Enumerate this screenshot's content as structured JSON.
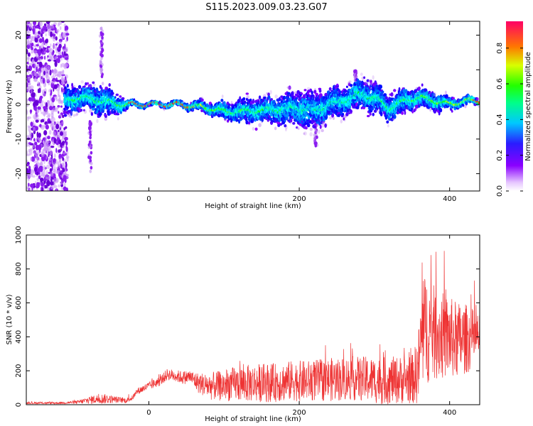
{
  "figure": {
    "title": "S115.2023.009.03.23.G07"
  },
  "colors": {
    "line": "#ee3333",
    "axis": "#000000"
  },
  "chart_data": [
    {
      "type": "heatmap",
      "title": "S115.2023.009.03.23.G07",
      "xlabel": "Height of straight line (km)",
      "ylabel": "Frequency (Hz)",
      "xlim": [
        -163,
        440
      ],
      "ylim": [
        -25,
        24
      ],
      "xticks": [
        0,
        200,
        400
      ],
      "yticks": [
        -20,
        -10,
        0,
        10,
        20
      ],
      "colorbar": {
        "label": "Normalized spectral amplitude",
        "ticks": [
          "0.0",
          "0.2",
          "0.4",
          "0.6",
          "0.8"
        ],
        "range": [
          0,
          0.95
        ],
        "colormap": "rainbow"
      },
      "ridge": {
        "x": [
          -110,
          -90,
          -60,
          -40,
          -25,
          0,
          40,
          80,
          100,
          130,
          160,
          180,
          200,
          220,
          240,
          260,
          280,
          300,
          320,
          340,
          360,
          380,
          400,
          420,
          440
        ],
        "freq": [
          1,
          2,
          1,
          0,
          0,
          0,
          0,
          -1,
          -2,
          -2,
          -1.5,
          -1.5,
          -1,
          -2,
          0,
          1,
          3,
          2,
          -1,
          1,
          2,
          1,
          0,
          1,
          1
        ],
        "spread": [
          5,
          4,
          5,
          3,
          1,
          0.5,
          0.8,
          2,
          3,
          4,
          4,
          5,
          6,
          6,
          5,
          5,
          5,
          5,
          4,
          4,
          3,
          3,
          2,
          1.5,
          1
        ]
      },
      "noise_region": {
        "x": [
          -163,
          -108
        ],
        "y": [
          -25,
          24
        ]
      },
      "bursts": [
        {
          "x": -63,
          "y_range": [
            8,
            22
          ]
        },
        {
          "x": -78,
          "y_range": [
            -20,
            -5
          ]
        },
        {
          "x": 222,
          "y_range": [
            -12,
            -4
          ]
        },
        {
          "x": 275,
          "y_range": [
            4,
            10
          ]
        }
      ]
    },
    {
      "type": "line",
      "xlabel": "Height of straight line (km)",
      "ylabel": "SNR (10 * v/v)",
      "xlim": [
        -163,
        440
      ],
      "ylim": [
        0,
        1000
      ],
      "xticks": [
        0,
        200,
        400
      ],
      "yticks": [
        0,
        200,
        400,
        600,
        800,
        1000
      ],
      "series": [
        {
          "color": "#ee3333",
          "x": [
            -163,
            -120,
            -95,
            -75,
            -60,
            -45,
            -30,
            -22,
            -15,
            0,
            15,
            25,
            35,
            45,
            55,
            65,
            80,
            95,
            110,
            130,
            150,
            170,
            190,
            210,
            230,
            250,
            270,
            290,
            310,
            330,
            350,
            358,
            362,
            368,
            380,
            395,
            410,
            425,
            440
          ],
          "base": [
            10,
            10,
            15,
            30,
            35,
            30,
            25,
            40,
            80,
            110,
            140,
            180,
            170,
            160,
            165,
            130,
            110,
            110,
            120,
            125,
            130,
            130,
            140,
            140,
            145,
            150,
            155,
            150,
            140,
            145,
            150,
            200,
            380,
            450,
            420,
            400,
            380,
            390,
            400
          ],
          "amp": [
            5,
            6,
            10,
            25,
            30,
            20,
            15,
            15,
            20,
            25,
            30,
            35,
            35,
            40,
            40,
            60,
            80,
            90,
            100,
            110,
            115,
            115,
            120,
            120,
            125,
            130,
            130,
            135,
            140,
            140,
            145,
            200,
            300,
            330,
            280,
            250,
            230,
            200,
            130
          ]
        }
      ]
    }
  ]
}
